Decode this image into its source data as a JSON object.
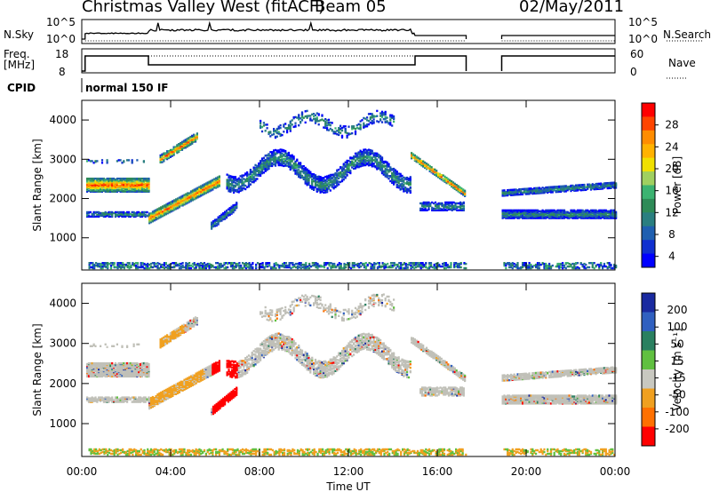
{
  "header": {
    "station": "Christmas Valley West (fitACF)",
    "beam": "Beam 05",
    "date": "02/May/2011"
  },
  "params": {
    "nsky_label": "N.Sky",
    "nsearch_label": "N.Search",
    "exp_hi": "10^5",
    "exp_lo": "10^0",
    "freq_label": "Freq.",
    "freq_unit": "[MHz]",
    "freq_ticks": [
      "18",
      "8"
    ],
    "nave_label": "Nave",
    "nave_ticks": [
      "60",
      "0"
    ],
    "cpid_label": "CPID",
    "cpid_value": "normal 150 IF"
  },
  "chart_data": [
    {
      "type": "heatmap",
      "title": "",
      "ylabel": "Slant Range [km]",
      "xlabel": "",
      "x_ticks": [
        "00:00",
        "04:00",
        "08:00",
        "12:00",
        "16:00",
        "20:00",
        "00:00"
      ],
      "y_ticks": [
        1000,
        2000,
        3000,
        4000
      ],
      "ylim": [
        180,
        4500
      ],
      "xlim_hours": [
        0,
        24
      ],
      "colorbar": {
        "label": "Power [dB]",
        "ticks": [
          "28",
          "24",
          "20",
          "16",
          "12",
          "8",
          "4"
        ],
        "colors": [
          "#ff0000",
          "#ff4500",
          "#ff8c00",
          "#ffb200",
          "#f0e000",
          "#a0d060",
          "#3cb371",
          "#2e8b57",
          "#2a7f80",
          "#1f5fb0",
          "#1030d0",
          "#0000ff"
        ]
      },
      "data_gaps_hours": [
        [
          17.3,
          18.9
        ]
      ]
    },
    {
      "type": "heatmap",
      "title": "",
      "ylabel": "Slant Range [km]",
      "xlabel": "Time UT",
      "x_ticks": [
        "00:00",
        "04:00",
        "08:00",
        "12:00",
        "16:00",
        "20:00",
        "00:00"
      ],
      "y_ticks": [
        1000,
        2000,
        3000,
        4000
      ],
      "ylim": [
        180,
        4500
      ],
      "xlim_hours": [
        0,
        24
      ],
      "colorbar": {
        "label": "Velocity [m s⁻¹]",
        "ticks": [
          "200",
          "100",
          "50",
          "15",
          "-15",
          "-50",
          "-100",
          "-200"
        ],
        "colors": [
          "#1a2aa0",
          "#3060c0",
          "#2a8060",
          "#60c040",
          "#c8c8c0",
          "#f0a020",
          "#ff7000",
          "#ff0000"
        ]
      },
      "data_gaps_hours": [
        [
          17.3,
          18.9
        ]
      ]
    }
  ],
  "colors": {
    "ground_scatter": "#c0c0b8",
    "axis": "#000000"
  }
}
